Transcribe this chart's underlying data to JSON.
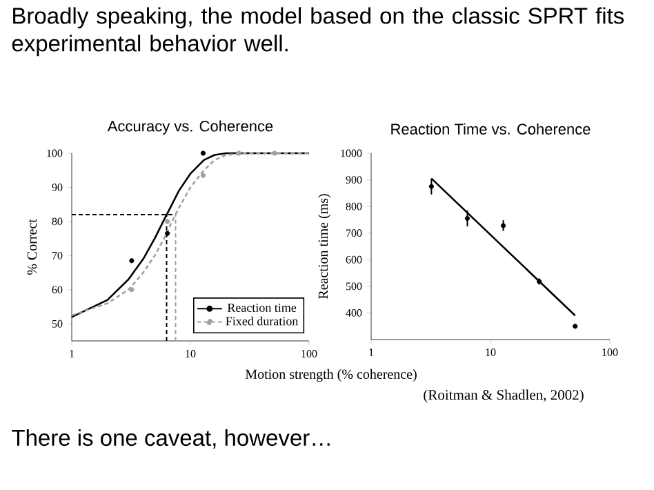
{
  "chart_data": [
    {
      "type": "line",
      "title": "Accuracy vs. Coherence",
      "xlabel": "Motion strength (% coherence)",
      "ylabel": "% Correct",
      "log": "x",
      "annotations": [
        "Broadly speaking, the model based on the classic SPRT fits experimental behavior well.",
        "There is one caveat, however…"
      ],
      "xlim": [
        1,
        100
      ],
      "ylim": [
        45,
        100
      ],
      "xticks": [
        1,
        10,
        100
      ],
      "yticks": [
        50,
        60,
        70,
        80,
        90,
        100
      ],
      "legend": "bottom right",
      "marker": "circle",
      "series": [
        {
          "name": "Reaction time",
          "color": "#000000",
          "line_style": "solid",
          "marker": "none",
          "x": [
            1,
            2,
            3,
            4,
            5,
            6,
            7,
            8,
            10,
            13,
            16,
            20,
            100
          ],
          "values": [
            52,
            57,
            63,
            69,
            75,
            80.5,
            85,
            89,
            94,
            98,
            99.5,
            100,
            100
          ]
        },
        {
          "name": "Fixed duration",
          "color": "#a0a0a0",
          "line_style": "dashed",
          "marker": "none",
          "x": [
            1,
            2,
            3,
            4,
            5,
            6,
            7,
            8,
            10,
            13,
            16,
            20,
            30,
            100
          ],
          "values": [
            52.5,
            56,
            60,
            65,
            70,
            75,
            80,
            84,
            90,
            95,
            98,
            99.5,
            100,
            100
          ]
        },
        {
          "type": "scatter",
          "color": "#a0a0a0",
          "x": [
            3.2,
            6.4,
            12.8,
            25.6,
            51.2
          ],
          "values": [
            60,
            80,
            93.5,
            100,
            100
          ]
        },
        {
          "type": "scatter",
          "color": "#000000",
          "x": [
            3.2,
            6.4,
            12.8
          ],
          "values": [
            68.5,
            76.5,
            100
          ]
        }
      ],
      "ref_lines": [
        {
          "axis": "y",
          "value": 82,
          "color": "#000000",
          "line_style": "dashed"
        },
        {
          "axis": "x",
          "value": 6.3,
          "color": "#000000",
          "line_style": "dashed"
        },
        {
          "axis": "x",
          "value": 7.5,
          "color": "#a0a0a0",
          "line_style": "dashed"
        }
      ]
    },
    {
      "type": "scatter",
      "title": "Reaction Time vs. Coherence",
      "ylabel": "Reaction time (ms)",
      "log": "x",
      "marker": "circle",
      "annotations": [
        "(Roitman & Shadlen, 2002)"
      ],
      "xlim": [
        1,
        100
      ],
      "ylim": [
        300,
        1000
      ],
      "xticks": [
        1,
        10,
        100
      ],
      "yticks": [
        400,
        500,
        600,
        700,
        800,
        900,
        1000
      ],
      "series": [
        {
          "color": "#000000",
          "x": [
            3.2,
            6.4,
            12.8,
            25.6,
            51.2
          ],
          "values": [
            875,
            755,
            728,
            518,
            350
          ],
          "errors": [
            30,
            30,
            20,
            12,
            null
          ]
        },
        {
          "type": "line",
          "color": "#000000",
          "line_style": "solid",
          "marker": "none",
          "x": [
            3.2,
            51.2
          ],
          "values": [
            905,
            390
          ]
        }
      ]
    }
  ]
}
